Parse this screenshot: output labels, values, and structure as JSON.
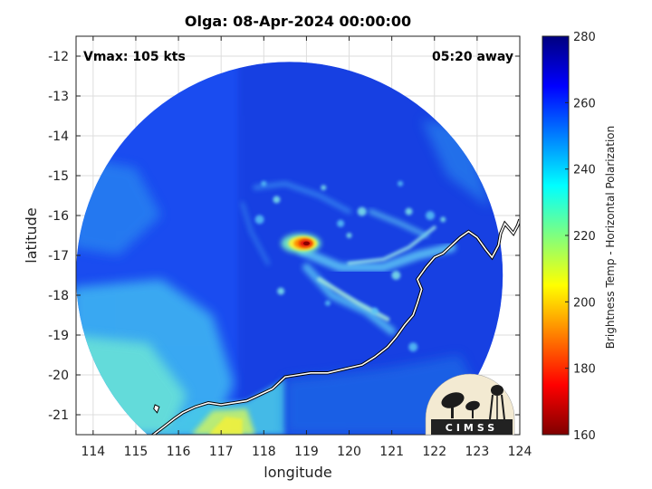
{
  "title": "Olga: 08-Apr-2024 00:00:00",
  "vmax_label": "Vmax: 105 kts",
  "away_label": "05:20 away",
  "xlabel": "longitude",
  "ylabel": "latitude",
  "colorbar_label": "Brightness Temp - Horizontal Polarization",
  "logo_text": "CIMSS",
  "x_ticks": [
    "114",
    "115",
    "116",
    "117",
    "118",
    "119",
    "120",
    "121",
    "122",
    "123",
    "124"
  ],
  "y_ticks": [
    "-12",
    "-13",
    "-14",
    "-15",
    "-16",
    "-17",
    "-18",
    "-19",
    "-20",
    "-21"
  ],
  "colorbar_ticks": [
    "280",
    "260",
    "240",
    "220",
    "200",
    "180",
    "160"
  ],
  "map": {
    "xlim": [
      113.6,
      124
    ],
    "ylim": [
      -21.5,
      -11.5
    ],
    "swath_center": [
      118.6,
      -17.5
    ],
    "swath_radius_deg": 5.0,
    "storm_center": [
      119.0,
      -16.7
    ],
    "cmin": 160,
    "cmax": 280
  },
  "coastline": [
    [
      115.35,
      -21.55
    ],
    [
      115.6,
      -21.35
    ],
    [
      115.9,
      -21.1
    ],
    [
      116.1,
      -20.95
    ],
    [
      116.4,
      -20.8
    ],
    [
      116.7,
      -20.7
    ],
    [
      117.0,
      -20.75
    ],
    [
      117.3,
      -20.7
    ],
    [
      117.6,
      -20.65
    ],
    [
      117.9,
      -20.5
    ],
    [
      118.2,
      -20.35
    ],
    [
      118.5,
      -20.05
    ],
    [
      118.8,
      -20.0
    ],
    [
      119.1,
      -19.95
    ],
    [
      119.5,
      -19.95
    ],
    [
      119.9,
      -19.85
    ],
    [
      120.3,
      -19.75
    ],
    [
      120.6,
      -19.55
    ],
    [
      120.9,
      -19.3
    ],
    [
      121.1,
      -19.05
    ],
    [
      121.3,
      -18.75
    ],
    [
      121.5,
      -18.5
    ],
    [
      121.6,
      -18.2
    ],
    [
      121.7,
      -17.85
    ],
    [
      121.6,
      -17.6
    ],
    [
      121.8,
      -17.3
    ],
    [
      122.0,
      -17.05
    ],
    [
      122.2,
      -16.95
    ],
    [
      122.4,
      -16.75
    ],
    [
      122.6,
      -16.55
    ],
    [
      122.8,
      -16.4
    ],
    [
      123.0,
      -16.55
    ],
    [
      123.2,
      -16.85
    ],
    [
      123.35,
      -17.05
    ],
    [
      123.5,
      -16.75
    ],
    [
      123.55,
      -16.45
    ],
    [
      123.65,
      -16.2
    ],
    [
      123.85,
      -16.45
    ],
    [
      123.95,
      -16.25
    ],
    [
      124.0,
      -16.1
    ]
  ],
  "island": [
    [
      115.45,
      -20.75
    ],
    [
      115.55,
      -20.8
    ],
    [
      115.5,
      -20.95
    ],
    [
      115.42,
      -20.85
    ],
    [
      115.45,
      -20.75
    ]
  ]
}
